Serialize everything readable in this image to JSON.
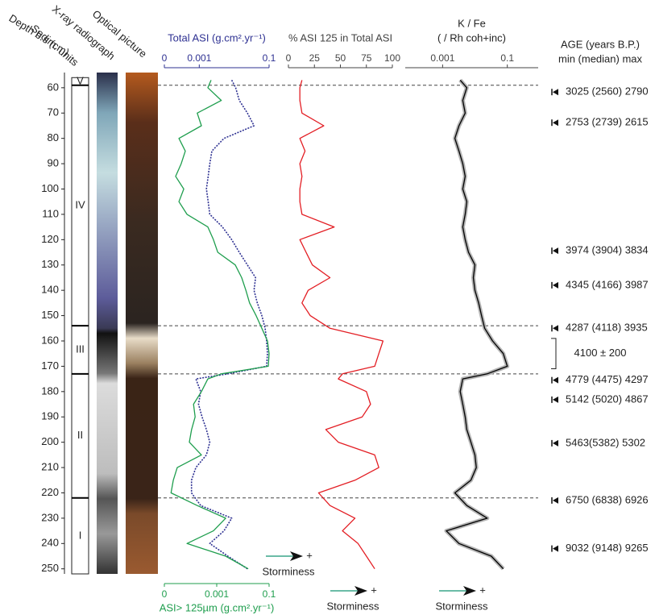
{
  "depth": {
    "label": "Depth b.s (cm)",
    "ylim": [
      54,
      252
    ],
    "yticks": [
      60,
      70,
      80,
      90,
      100,
      110,
      120,
      130,
      140,
      150,
      160,
      170,
      180,
      190,
      200,
      210,
      220,
      230,
      240,
      250
    ],
    "values": [
      57,
      60,
      65,
      70,
      75,
      80,
      85,
      90,
      95,
      100,
      105,
      110,
      115,
      120,
      125,
      130,
      135,
      140,
      145,
      150,
      155,
      160,
      165,
      170,
      173,
      175,
      180,
      185,
      190,
      195,
      200,
      205,
      210,
      215,
      220,
      225,
      230,
      235,
      240,
      245,
      250
    ]
  },
  "columns": [
    "X-ray radiograph",
    "Sedim. units",
    "Optical picture"
  ],
  "units": [
    {
      "label": "V",
      "top": 56,
      "bottom": 59
    },
    {
      "label": "IV",
      "top": 59,
      "bottom": 154
    },
    {
      "label": "III",
      "top": 154,
      "bottom": 173
    },
    {
      "label": "II",
      "top": 173,
      "bottom": 222
    },
    {
      "label": "I",
      "top": 222,
      "bottom": 252
    }
  ],
  "chart_data": [
    {
      "type": "line",
      "log": true,
      "xlabel": "ASI> 125µm (g.cm².yr⁻¹)",
      "xlim": [
        1e-05,
        0.1
      ],
      "xticks": [
        {
          "value": 1e-05,
          "label": "0"
        },
        0.001,
        0.1
      ],
      "x2label": "Total ASI (g.cm².yr⁻¹)",
      "x2lim": [
        0.0001,
        0.1
      ],
      "x2ticks": [
        {
          "value": 0.0001,
          "label": "0"
        },
        0.001,
        0.1
      ],
      "series": [
        {
          "color": "#2e3192",
          "dashed": true,
          "axis": "x2",
          "values": [
            0.0085,
            0.011,
            0.014,
            0.024,
            0.037,
            0.0051,
            0.0023,
            0.002,
            0.0018,
            0.0016,
            0.0018,
            0.002,
            0.0046,
            0.0085,
            0.014,
            0.024,
            0.041,
            0.037,
            0.046,
            0.062,
            0.077,
            0.085,
            0.09,
            0.085,
            0.0066,
            0.0008,
            0.0011,
            0.00095,
            0.0012,
            0.0016,
            0.002,
            0.0016,
            0.0008,
            0.0006,
            0.0006,
            0.0011,
            0.0085,
            0.0051,
            0.002,
            0.0066,
            0.024
          ]
        },
        {
          "color": "#1f9e4e",
          "values": [
            0.00061,
            0.00046,
            0.0015,
            0.00018,
            0.00026,
            3.6e-05,
            6.3e-05,
            4.4e-05,
            2.7e-05,
            5.5e-05,
            3.6e-05,
            7.3e-05,
            0.00046,
            0.00075,
            0.0011,
            0.0051,
            0.009,
            0.013,
            0.018,
            0.032,
            0.053,
            0.087,
            0.1,
            0.093,
            0.0015,
            0.00046,
            0.00026,
            0.00013,
            0.00015,
            0.00011,
            9e-05,
            0.00026,
            3.1e-05,
            2.2e-05,
            1.8e-05,
            0.00018,
            0.0022,
            0.00075,
            7.3e-05,
            0.0022,
            0.016
          ]
        }
      ],
      "storminess": "Storminess",
      "plus": "+"
    },
    {
      "type": "line",
      "xaxis": "top",
      "xlabel": "% ASI 125 in Total ASI",
      "xlim": [
        0,
        100
      ],
      "xticks": [
        0,
        25,
        50,
        75,
        100
      ],
      "series": [
        {
          "color": "#e31e24",
          "values": [
            13,
            11,
            11,
            13,
            34,
            11,
            16,
            11,
            13,
            11,
            11,
            13,
            44,
            11,
            17,
            23,
            40,
            19,
            13,
            21,
            40,
            91,
            87,
            83,
            52,
            48,
            75,
            79,
            71,
            36,
            48,
            83,
            87,
            64,
            29,
            40,
            64,
            52,
            67,
            75,
            83
          ]
        }
      ],
      "storminess": "Storminess",
      "plus": "+"
    },
    {
      "type": "line",
      "log": true,
      "xaxis": "top",
      "xlabel": [
        "K / Fe",
        "( / Rh coh+inc)"
      ],
      "xlim": [
        7e-05,
        0.9
      ],
      "xticks": [
        0.001,
        0.1
      ],
      "series": [
        {
          "color": "#000000",
          "band": "#b5b5b5",
          "values": [
            0.0035,
            0.0056,
            0.0042,
            0.005,
            0.0032,
            0.0024,
            0.0032,
            0.0042,
            0.005,
            0.0042,
            0.0056,
            0.005,
            0.0042,
            0.005,
            0.0063,
            0.01,
            0.0089,
            0.01,
            0.013,
            0.016,
            0.02,
            0.035,
            0.075,
            0.1,
            0.024,
            0.0042,
            0.0035,
            0.0042,
            0.005,
            0.0056,
            0.0075,
            0.01,
            0.011,
            0.0075,
            0.0024,
            0.0056,
            0.024,
            0.0013,
            0.0032,
            0.032,
            0.075
          ]
        }
      ],
      "storminess": "Storminess",
      "plus": "+"
    }
  ],
  "age_header": [
    "AGE (years B.P.)",
    "min (median) max"
  ],
  "ages": [
    {
      "label": "3025 (2560) 2790",
      "depth": 61.7
    },
    {
      "label": "2753 (2739) 2615",
      "depth": 73.8
    },
    {
      "label": "3974 (3904) 3834",
      "depth": 124.4
    },
    {
      "label": "4345 (4166) 3987",
      "depth": 138
    },
    {
      "label": "4287 (4118) 3935",
      "depth": 155
    },
    {
      "label": "4779 (4475) 4297",
      "depth": 175.5
    },
    {
      "label": "5142 (5020) 4867",
      "depth": 183.2
    },
    {
      "label": "5463(5382) 5302",
      "depth": 200.4
    },
    {
      "label": "6750 (6838) 6926",
      "depth": 223
    },
    {
      "label": "9032 (9148) 9265",
      "depth": 242
    }
  ],
  "age_range": {
    "label": "4100 ± 200",
    "from": 159,
    "to": 171
  }
}
